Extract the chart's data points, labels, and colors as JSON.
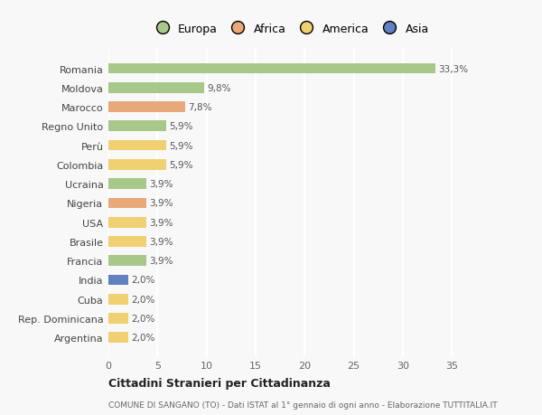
{
  "countries": [
    "Romania",
    "Moldova",
    "Marocco",
    "Regno Unito",
    "Perù",
    "Colombia",
    "Ucraina",
    "Nigeria",
    "USA",
    "Brasile",
    "Francia",
    "India",
    "Cuba",
    "Rep. Dominicana",
    "Argentina"
  ],
  "values": [
    33.3,
    9.8,
    7.8,
    5.9,
    5.9,
    5.9,
    3.9,
    3.9,
    3.9,
    3.9,
    3.9,
    2.0,
    2.0,
    2.0,
    2.0
  ],
  "labels": [
    "33,3%",
    "9,8%",
    "7,8%",
    "5,9%",
    "5,9%",
    "5,9%",
    "3,9%",
    "3,9%",
    "3,9%",
    "3,9%",
    "3,9%",
    "2,0%",
    "2,0%",
    "2,0%",
    "2,0%"
  ],
  "continents": [
    "Europa",
    "Europa",
    "Africa",
    "Europa",
    "America",
    "America",
    "Europa",
    "Africa",
    "America",
    "America",
    "Europa",
    "Asia",
    "America",
    "America",
    "America"
  ],
  "continent_colors": {
    "Europa": "#a8c88a",
    "Africa": "#e8a87a",
    "America": "#f0d070",
    "Asia": "#6080c0"
  },
  "legend_order": [
    "Europa",
    "Africa",
    "America",
    "Asia"
  ],
  "legend_colors": [
    "#a8c88a",
    "#e8a87a",
    "#f0d070",
    "#6080c0"
  ],
  "xlim": [
    0,
    37
  ],
  "xticks": [
    0,
    5,
    10,
    15,
    20,
    25,
    30,
    35
  ],
  "title1": "Cittadini Stranieri per Cittadinanza",
  "title2": "COMUNE DI SANGANO (TO) - Dati ISTAT al 1° gennaio di ogni anno - Elaborazione TUTTITALIA.IT",
  "background_color": "#f8f8f8",
  "bar_height": 0.55
}
